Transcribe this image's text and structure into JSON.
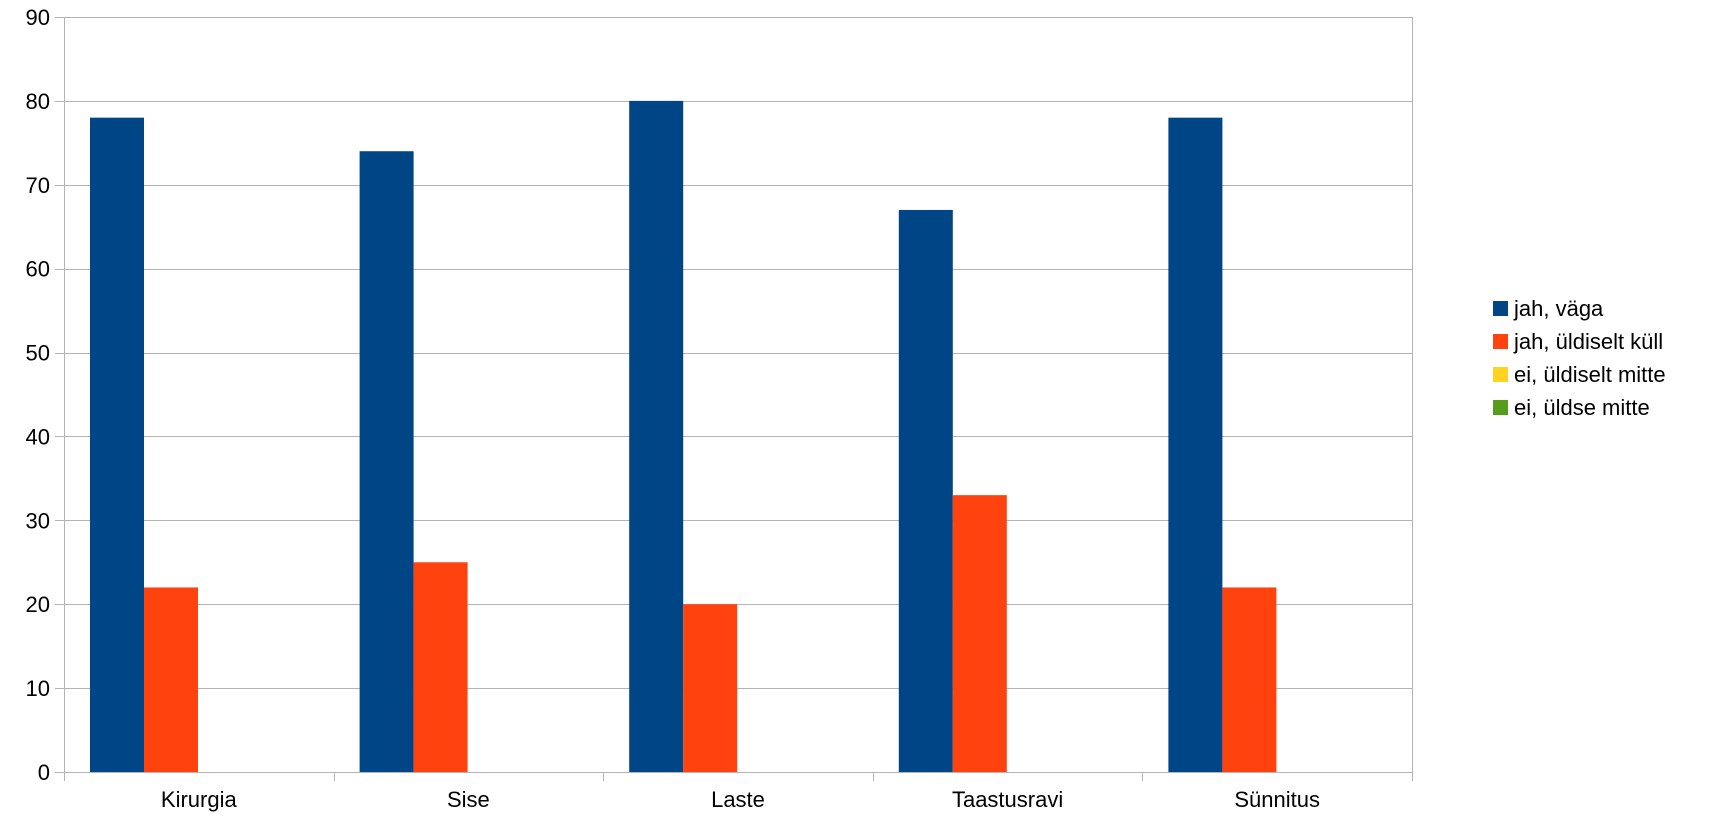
{
  "chart_data": {
    "type": "bar",
    "title": "",
    "xlabel": "",
    "ylabel": "",
    "ylim": [
      0,
      90
    ],
    "yticks": [
      "0",
      "10",
      "20",
      "30",
      "40",
      "50",
      "60",
      "70",
      "80",
      "90"
    ],
    "categories": [
      "Kirurgia",
      "Sise",
      "Laste",
      "Taastusravi",
      "Sünnitus"
    ],
    "series": [
      {
        "name": "jah, väga",
        "color": "#004586",
        "values": [
          78,
          74,
          80,
          67,
          78
        ]
      },
      {
        "name": "jah, üldiselt küll",
        "color": "#ff420e",
        "values": [
          22,
          25,
          20,
          33,
          22
        ]
      },
      {
        "name": "ei, üldiselt mitte",
        "color": "#ffd320",
        "values": [
          0,
          0,
          0,
          0,
          0
        ]
      },
      {
        "name": "ei, üldse mitte",
        "color": "#579d1c",
        "values": [
          0,
          0,
          0,
          0,
          0
        ]
      }
    ],
    "grid": true,
    "legend_position": "right"
  }
}
